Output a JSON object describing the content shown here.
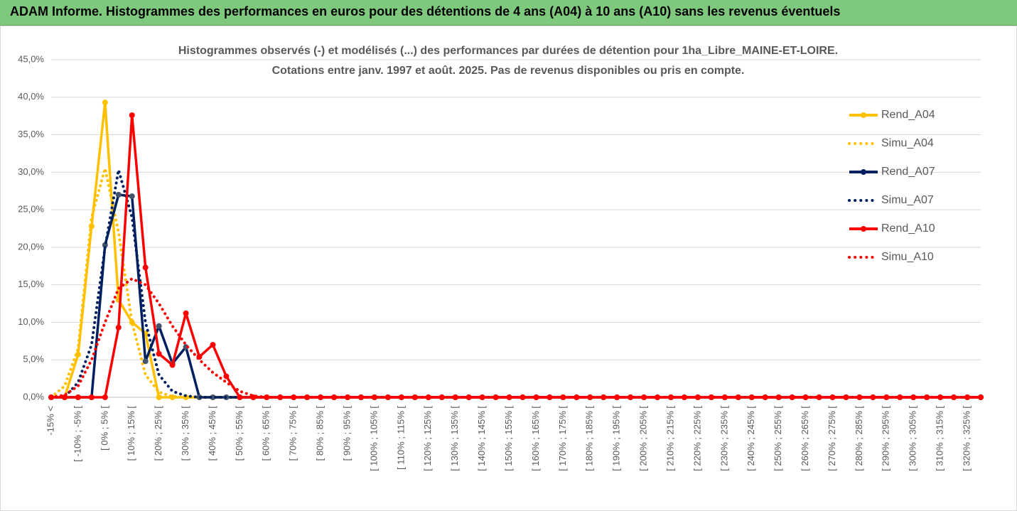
{
  "header": {
    "title": "ADAM Informe. Histogrammes des performances en euros pour des détentions de 4 ans (A04) à 10 ans (A10) sans les revenus éventuels"
  },
  "chart_data": {
    "type": "line",
    "title": "Histogrammes observés (-) et modélisés (...) des performances par durées de détention pour 1ha_Libre_MAINE-ET-LOIRE.",
    "subtitle": "Cotations entre janv. 1997 et août. 2025. Pas de revenus disponibles ou pris en compte.",
    "categories": [
      "-15% <",
      null,
      "[ -10% ; -5% [",
      null,
      "[ 0% ; 5% [",
      null,
      "[ 10% ; 15% [",
      null,
      "[ 20% ; 25% [",
      null,
      "[ 30% ; 35% [",
      null,
      "[ 40% ; 45% [",
      null,
      "[ 50% ; 55% [",
      null,
      "[ 60% ; 65% [",
      null,
      "[ 70% ; 75% [",
      null,
      "[ 80% ; 85% [",
      null,
      "[ 90% ; 95% [",
      null,
      "[ 100% ; 105% [",
      null,
      "[ 110% ; 115% [",
      null,
      "[ 120% ; 125% [",
      null,
      "[ 130% ; 135% [",
      null,
      "[ 140% ; 145% [",
      null,
      "[ 150% ; 155% [",
      null,
      "[ 160% ; 165% [",
      null,
      "[ 170% ; 175% [",
      null,
      "[ 180% ; 185% [",
      null,
      "[ 190% ; 195% [",
      null,
      "[ 200% ; 205% [",
      null,
      "[ 210% ; 215% [",
      null,
      "[ 220% ; 225% [",
      null,
      "[ 230% ; 235% [",
      null,
      "[ 240% ; 245% [",
      null,
      "[ 250% ; 255% [",
      null,
      "[ 260% ; 265% [",
      null,
      "[ 270% ; 275% [",
      null,
      "[ 280% ; 285% [",
      null,
      "[ 290% ; 295% [",
      null,
      "[ 300% ; 305% [",
      null,
      "[ 310% ; 315% [",
      null,
      "[ 320% ; 325% [",
      null
    ],
    "series": [
      {
        "name": "Rend_A04",
        "color": "#ffc000",
        "dotted": false,
        "markers": true,
        "values": [
          0,
          0,
          5.7,
          22.8,
          39.3,
          13,
          10,
          8.5,
          0,
          0,
          0,
          0,
          0,
          0,
          0,
          0,
          0,
          0,
          0,
          0,
          0,
          0,
          0,
          0,
          0,
          0,
          0,
          0,
          0,
          0,
          0,
          0,
          0,
          0,
          0,
          0,
          0,
          0,
          0,
          0,
          0,
          0,
          0,
          0,
          0,
          0,
          0,
          0,
          0,
          0,
          0,
          0,
          0,
          0,
          0,
          0,
          0,
          0,
          0,
          0,
          0,
          0,
          0,
          0,
          0,
          0,
          0,
          0,
          0,
          0
        ]
      },
      {
        "name": "Simu_A04",
        "color": "#ffc000",
        "dotted": true,
        "markers": false,
        "values": [
          0,
          1.5,
          6.5,
          24,
          30.5,
          22,
          10,
          3,
          0.7,
          0.1,
          0,
          0,
          0,
          0,
          0,
          0,
          0,
          0,
          0,
          0,
          0,
          0,
          0,
          0,
          0,
          0,
          0,
          0,
          0,
          0,
          0,
          0,
          0,
          0,
          0,
          0,
          0,
          0,
          0,
          0,
          0,
          0,
          0,
          0,
          0,
          0,
          0,
          0,
          0,
          0,
          0,
          0,
          0,
          0,
          0,
          0,
          0,
          0,
          0,
          0,
          0,
          0,
          0,
          0,
          0,
          0,
          0,
          0,
          0,
          0
        ]
      },
      {
        "name": "Rend_A07",
        "color": "#002060",
        "dotted": false,
        "markers": true,
        "values": [
          0,
          0,
          0,
          0,
          20.3,
          27,
          26.8,
          4.8,
          9.5,
          4.5,
          6.7,
          0,
          0,
          0,
          0,
          0,
          0,
          0,
          0,
          0,
          0,
          0,
          0,
          0,
          0,
          0,
          0,
          0,
          0,
          0,
          0,
          0,
          0,
          0,
          0,
          0,
          0,
          0,
          0,
          0,
          0,
          0,
          0,
          0,
          0,
          0,
          0,
          0,
          0,
          0,
          0,
          0,
          0,
          0,
          0,
          0,
          0,
          0,
          0,
          0,
          0,
          0,
          0,
          0,
          0,
          0,
          0,
          0,
          0,
          0
        ]
      },
      {
        "name": "Simu_A07",
        "color": "#002060",
        "dotted": true,
        "markers": false,
        "values": [
          0,
          0,
          2,
          7,
          20,
          30.3,
          24,
          10,
          3,
          0.8,
          0.2,
          0,
          0,
          0,
          0,
          0,
          0,
          0,
          0,
          0,
          0,
          0,
          0,
          0,
          0,
          0,
          0,
          0,
          0,
          0,
          0,
          0,
          0,
          0,
          0,
          0,
          0,
          0,
          0,
          0,
          0,
          0,
          0,
          0,
          0,
          0,
          0,
          0,
          0,
          0,
          0,
          0,
          0,
          0,
          0,
          0,
          0,
          0,
          0,
          0,
          0,
          0,
          0,
          0,
          0,
          0,
          0,
          0,
          0,
          0
        ]
      },
      {
        "name": "Rend_A10",
        "color": "#ff0000",
        "dotted": false,
        "markers": true,
        "values": [
          0,
          0,
          0,
          0,
          0,
          9.3,
          37.6,
          17.3,
          5.8,
          4.3,
          11.2,
          5.4,
          7,
          2.8,
          0,
          0,
          0,
          0,
          0,
          0,
          0,
          0,
          0,
          0,
          0,
          0,
          0,
          0,
          0,
          0,
          0,
          0,
          0,
          0,
          0,
          0,
          0,
          0,
          0,
          0,
          0,
          0,
          0,
          0,
          0,
          0,
          0,
          0,
          0,
          0,
          0,
          0,
          0,
          0,
          0,
          0,
          0,
          0,
          0,
          0,
          0,
          0,
          0,
          0,
          0,
          0,
          0,
          0,
          0,
          0
        ]
      },
      {
        "name": "Simu_A10",
        "color": "#ff0000",
        "dotted": true,
        "markers": false,
        "values": [
          0,
          0.3,
          1.5,
          5,
          10,
          14.5,
          15.8,
          15,
          12.5,
          9.5,
          7,
          5,
          3.3,
          2,
          0.8,
          0.2,
          0,
          0,
          0,
          0,
          0,
          0,
          0,
          0,
          0,
          0,
          0,
          0,
          0,
          0,
          0,
          0,
          0,
          0,
          0,
          0,
          0,
          0,
          0,
          0,
          0,
          0,
          0,
          0,
          0,
          0,
          0,
          0,
          0,
          0,
          0,
          0,
          0,
          0,
          0,
          0,
          0,
          0,
          0,
          0,
          0,
          0,
          0,
          0,
          0,
          0,
          0,
          0,
          0,
          0
        ]
      }
    ],
    "ylim": [
      0,
      45
    ],
    "yticks": [
      {
        "value": 0,
        "label": "0,0%"
      },
      {
        "value": 5,
        "label": "5,0%"
      },
      {
        "value": 10,
        "label": "10,0%"
      },
      {
        "value": 15,
        "label": "15,0%"
      },
      {
        "value": 20,
        "label": "20,0%"
      },
      {
        "value": 25,
        "label": "25,0%"
      },
      {
        "value": 30,
        "label": "30,0%"
      },
      {
        "value": 35,
        "label": "35,0%"
      },
      {
        "value": 40,
        "label": "40,0%"
      },
      {
        "value": 45,
        "label": "45,0%"
      }
    ],
    "grid": true,
    "legend": "right"
  }
}
